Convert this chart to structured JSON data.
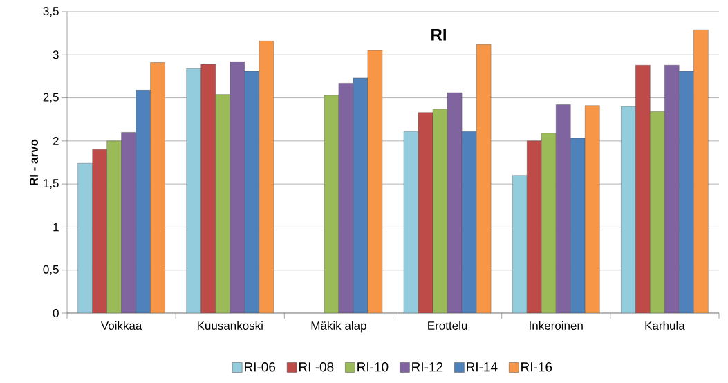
{
  "chart_data": {
    "type": "bar",
    "title": "RI",
    "ylabel": "RI - arvo",
    "categories": [
      "Voikkaa",
      "Kuusankoski",
      "Mäkik alap",
      "Erottelu",
      "Inkeroinen",
      "Karhula"
    ],
    "series": [
      {
        "name": "RI-06",
        "color": "#93cddd",
        "values": [
          1.74,
          2.84,
          null,
          2.11,
          1.6,
          2.4
        ]
      },
      {
        "name": "RI -08",
        "color": "#be4b48",
        "values": [
          1.9,
          2.89,
          null,
          2.33,
          2.0,
          2.88
        ]
      },
      {
        "name": "RI-10",
        "color": "#9bbb59",
        "values": [
          2.0,
          2.54,
          2.53,
          2.37,
          2.09,
          2.34
        ]
      },
      {
        "name": "RI-12",
        "color": "#7f649f",
        "values": [
          2.1,
          2.92,
          2.67,
          2.56,
          2.42,
          2.88
        ]
      },
      {
        "name": "RI-14",
        "color": "#4f81bd",
        "values": [
          2.59,
          2.81,
          2.73,
          2.11,
          2.03,
          2.81
        ]
      },
      {
        "name": "RI-16",
        "color": "#f79646",
        "values": [
          2.91,
          3.16,
          3.05,
          3.12,
          2.41,
          3.29
        ]
      }
    ],
    "ylim": [
      0,
      3.5
    ],
    "yticks": [
      0,
      {
        "value": 0.5,
        "label": "0,5"
      },
      1,
      {
        "value": 1.5,
        "label": "1,5"
      },
      2,
      {
        "value": 2.5,
        "label": "2,5"
      },
      3,
      {
        "value": 3.5,
        "label": "3,5"
      }
    ],
    "grid": "y",
    "legend": "bottom"
  }
}
